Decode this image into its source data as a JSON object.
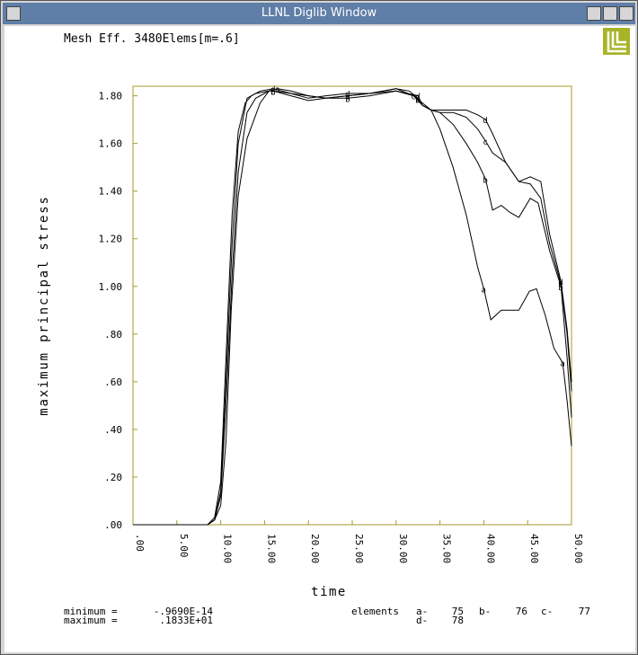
{
  "window": {
    "title": "LLNL Diglib Window"
  },
  "chart_data": {
    "type": "line",
    "title": "Mesh Eff. 3480Elems[m=.6]",
    "xlabel": "time",
    "ylabel": "maximum principal stress",
    "xlim": [
      0,
      50
    ],
    "ylim": [
      0,
      1.84
    ],
    "x_tick_labels": [
      ".00",
      "5.00",
      "10.00",
      "15.00",
      "20.00",
      "25.00",
      "30.00",
      "35.00",
      "40.00",
      "45.00",
      "50.00"
    ],
    "y_tick_labels": [
      ".00",
      ".20",
      ".40",
      ".60",
      ".80",
      "1.00",
      "1.20",
      "1.40",
      "1.60",
      "1.80"
    ],
    "grid": false,
    "series": [
      {
        "name": "a",
        "marker": "a",
        "markers_at": [
          16.5,
          24.5,
          32.5,
          40.0,
          49.0
        ],
        "points": [
          [
            0,
            0
          ],
          [
            8.5,
            0
          ],
          [
            9.3,
            0.02
          ],
          [
            10,
            0.08
          ],
          [
            10.6,
            0.35
          ],
          [
            11.2,
            0.9
          ],
          [
            12,
            1.38
          ],
          [
            13,
            1.62
          ],
          [
            14.5,
            1.77
          ],
          [
            15.5,
            1.82
          ],
          [
            16.5,
            1.83
          ],
          [
            18,
            1.82
          ],
          [
            20,
            1.8
          ],
          [
            22,
            1.79
          ],
          [
            24.5,
            1.8
          ],
          [
            27,
            1.81
          ],
          [
            30,
            1.83
          ],
          [
            31.5,
            1.82
          ],
          [
            32.5,
            1.79
          ],
          [
            33,
            1.76
          ],
          [
            34,
            1.74
          ],
          [
            35,
            1.66
          ],
          [
            36.5,
            1.5
          ],
          [
            38,
            1.3
          ],
          [
            39.3,
            1.08
          ],
          [
            40.0,
            0.99
          ],
          [
            40.8,
            0.86
          ],
          [
            42,
            0.9
          ],
          [
            44,
            0.9
          ],
          [
            45.2,
            0.98
          ],
          [
            46,
            0.99
          ],
          [
            47,
            0.88
          ],
          [
            48,
            0.74
          ],
          [
            49,
            0.68
          ],
          [
            49.5,
            0.52
          ],
          [
            50,
            0.33
          ]
        ]
      },
      {
        "name": "b",
        "marker": "b",
        "markers_at": [
          16.0,
          24.5,
          32.5,
          40.2,
          48.8
        ],
        "points": [
          [
            0,
            0
          ],
          [
            8.5,
            0
          ],
          [
            9.3,
            0.02
          ],
          [
            10,
            0.12
          ],
          [
            10.6,
            0.5
          ],
          [
            11.3,
            1.05
          ],
          [
            12,
            1.48
          ],
          [
            13,
            1.73
          ],
          [
            14,
            1.79
          ],
          [
            15.5,
            1.82
          ],
          [
            16.0,
            1.82
          ],
          [
            18,
            1.8
          ],
          [
            20,
            1.78
          ],
          [
            22,
            1.79
          ],
          [
            24.5,
            1.79
          ],
          [
            27,
            1.8
          ],
          [
            30,
            1.82
          ],
          [
            32,
            1.8
          ],
          [
            33,
            1.77
          ],
          [
            34,
            1.74
          ],
          [
            35,
            1.73
          ],
          [
            36.5,
            1.68
          ],
          [
            38,
            1.6
          ],
          [
            39.3,
            1.52
          ],
          [
            40.2,
            1.45
          ],
          [
            41,
            1.32
          ],
          [
            42,
            1.34
          ],
          [
            43,
            1.31
          ],
          [
            44,
            1.29
          ],
          [
            45.3,
            1.37
          ],
          [
            46.2,
            1.35
          ],
          [
            47.5,
            1.15
          ],
          [
            48.8,
            1.0
          ],
          [
            49.5,
            0.7
          ],
          [
            50,
            0.45
          ]
        ]
      },
      {
        "name": "c",
        "marker": "c",
        "markers_at": [
          16.0,
          24.5,
          32.0,
          40.2,
          48.8
        ],
        "points": [
          [
            0,
            0
          ],
          [
            8.5,
            0
          ],
          [
            9.3,
            0.02
          ],
          [
            10,
            0.14
          ],
          [
            10.6,
            0.6
          ],
          [
            11.3,
            1.18
          ],
          [
            12,
            1.6
          ],
          [
            13,
            1.79
          ],
          [
            14,
            1.81
          ],
          [
            15.5,
            1.82
          ],
          [
            16.0,
            1.82
          ],
          [
            18,
            1.81
          ],
          [
            20,
            1.8
          ],
          [
            22,
            1.79
          ],
          [
            24.5,
            1.8
          ],
          [
            27,
            1.81
          ],
          [
            30,
            1.83
          ],
          [
            32,
            1.8
          ],
          [
            33,
            1.76
          ],
          [
            34,
            1.74
          ],
          [
            35,
            1.73
          ],
          [
            36.5,
            1.73
          ],
          [
            38,
            1.71
          ],
          [
            39.3,
            1.66
          ],
          [
            40.2,
            1.61
          ],
          [
            41,
            1.56
          ],
          [
            42.5,
            1.52
          ],
          [
            44,
            1.44
          ],
          [
            45.3,
            1.43
          ],
          [
            46.5,
            1.37
          ],
          [
            47.5,
            1.18
          ],
          [
            48.8,
            1.01
          ],
          [
            49.5,
            0.8
          ],
          [
            50,
            0.56
          ]
        ]
      },
      {
        "name": "d",
        "marker": "d",
        "markers_at": [
          16.0,
          24.5,
          32.5,
          40.2,
          48.8
        ],
        "points": [
          [
            0,
            0
          ],
          [
            8.5,
            0
          ],
          [
            9.3,
            0.03
          ],
          [
            10,
            0.18
          ],
          [
            10.6,
            0.7
          ],
          [
            11.3,
            1.3
          ],
          [
            12,
            1.65
          ],
          [
            12.8,
            1.77
          ],
          [
            13.5,
            1.8
          ],
          [
            14.5,
            1.82
          ],
          [
            16.0,
            1.83
          ],
          [
            18,
            1.81
          ],
          [
            20,
            1.79
          ],
          [
            22,
            1.8
          ],
          [
            24.5,
            1.81
          ],
          [
            27,
            1.81
          ],
          [
            30,
            1.82
          ],
          [
            32.5,
            1.8
          ],
          [
            33,
            1.76
          ],
          [
            34,
            1.74
          ],
          [
            35,
            1.74
          ],
          [
            36.5,
            1.74
          ],
          [
            38,
            1.74
          ],
          [
            39.3,
            1.72
          ],
          [
            40.2,
            1.7
          ],
          [
            41,
            1.64
          ],
          [
            42.5,
            1.52
          ],
          [
            44,
            1.44
          ],
          [
            45.3,
            1.46
          ],
          [
            46.5,
            1.44
          ],
          [
            47.5,
            1.22
          ],
          [
            48.8,
            1.02
          ],
          [
            49.5,
            0.82
          ],
          [
            50,
            0.6
          ]
        ]
      }
    ],
    "stats": {
      "minimum_label": "minimum =",
      "minimum_value": "-.9690E-14",
      "maximum_label": "maximum =",
      "maximum_value": ".1833E+01"
    },
    "elements_legend": {
      "label": "elements",
      "entries": [
        {
          "key": "a-",
          "value": "75"
        },
        {
          "key": "b-",
          "value": "76"
        },
        {
          "key": "c-",
          "value": "77"
        },
        {
          "key": "d-",
          "value": "78"
        }
      ]
    }
  },
  "colors": {
    "axes_frame": "#a89a28",
    "line": "#000000",
    "logo": "#a8b428",
    "titlebar": "#5f7ea8"
  },
  "logo": {
    "name": "llnl-logo"
  }
}
